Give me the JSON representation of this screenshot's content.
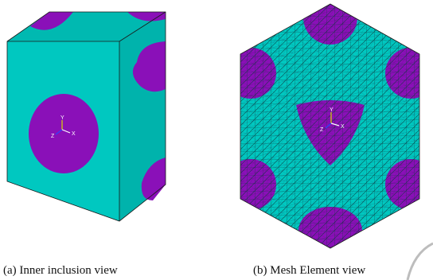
{
  "panels": [
    {
      "caption": "(a) Inner inclusion view",
      "axis_labels": {
        "y": "Y",
        "x": "X",
        "z": "Z"
      }
    },
    {
      "caption": "(b) Mesh Element view",
      "axis_labels": {
        "y": "Y",
        "x": "X",
        "z": "Z"
      }
    }
  ],
  "colors": {
    "matrix": "#00c8c0",
    "matrix_top": "#00b9b1",
    "matrix_dark": "#00aaa3",
    "inclusion": "#8a10b8",
    "mesh_line": "#0b3b3b",
    "edge": "#1a1a1a",
    "axis_y": "#d8d800",
    "axis_x": "#ffffff",
    "axis_z": "#3040ff"
  }
}
